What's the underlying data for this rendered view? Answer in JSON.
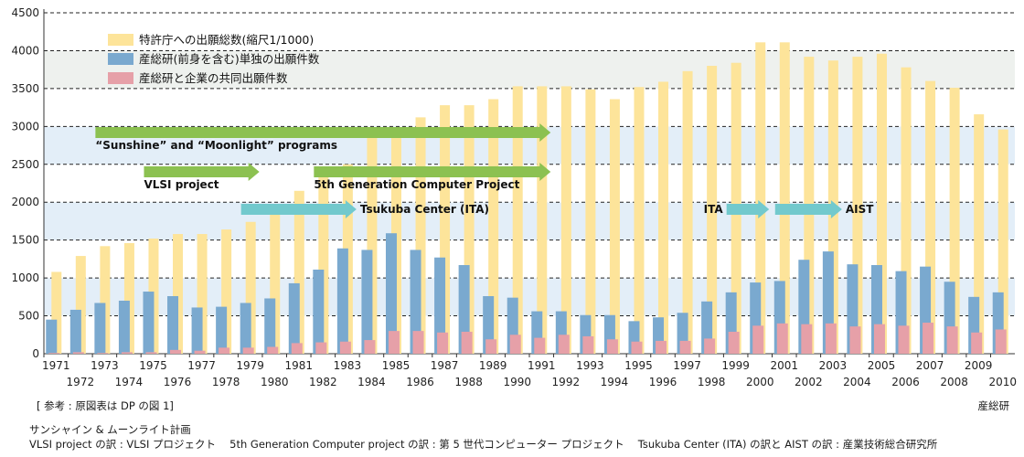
{
  "chart_data": {
    "type": "bar",
    "categories": [
      "1971",
      "1972",
      "1973",
      "1974",
      "1975",
      "1976",
      "1977",
      "1978",
      "1979",
      "1980",
      "1981",
      "1982",
      "1983",
      "1984",
      "1985",
      "1986",
      "1987",
      "1988",
      "1989",
      "1990",
      "1991",
      "1992",
      "1993",
      "1994",
      "1995",
      "1996",
      "1997",
      "1998",
      "1999",
      "2000",
      "2001",
      "2002",
      "2003",
      "2004",
      "2005",
      "2006",
      "2007",
      "2008",
      "2009",
      "2010"
    ],
    "ylim": [
      0,
      4500
    ],
    "yticks": [
      0,
      500,
      1000,
      1500,
      2000,
      2500,
      3000,
      3500,
      4000,
      4500
    ],
    "series": [
      {
        "name": "特許庁への出願総数(縮尺1/1000)",
        "color": "#fde49a",
        "values": [
          1080,
          1290,
          1420,
          1460,
          1520,
          1580,
          1580,
          1640,
          1740,
          1870,
          2150,
          2330,
          2500,
          2870,
          2850,
          3120,
          3280,
          3280,
          3360,
          3530,
          3530,
          3530,
          3490,
          3360,
          3520,
          3590,
          3730,
          3800,
          3840,
          4110,
          4110,
          3920,
          3870,
          3920,
          3960,
          3780,
          3600,
          3510,
          3160,
          2960
        ]
      },
      {
        "name": "産総研(前身を含む)単独の出願件数",
        "color": "#7aa9cf",
        "values": [
          450,
          580,
          670,
          700,
          820,
          760,
          610,
          620,
          670,
          730,
          930,
          1110,
          1390,
          1370,
          1590,
          1370,
          1270,
          1170,
          760,
          740,
          560,
          560,
          510,
          510,
          430,
          480,
          540,
          690,
          810,
          940,
          960,
          1240,
          1350,
          1180,
          1170,
          1090,
          1150,
          950,
          750,
          810
        ]
      },
      {
        "name": "産総研と企業の共同出願件数",
        "color": "#e6a0a8",
        "values": [
          10,
          20,
          10,
          20,
          20,
          50,
          40,
          80,
          80,
          90,
          140,
          150,
          160,
          180,
          300,
          300,
          280,
          290,
          190,
          250,
          210,
          250,
          230,
          190,
          160,
          170,
          170,
          200,
          290,
          370,
          400,
          390,
          400,
          360,
          390,
          370,
          410,
          360,
          280,
          320
        ]
      }
    ],
    "legend_position": "top-left",
    "annotations": [
      {
        "text": "“Sunshine” and “Moonlight” programs",
        "start": "1973",
        "end": "1991"
      },
      {
        "text": "VLSI project",
        "start": "1975",
        "end": "1979"
      },
      {
        "text": "5th Generation Computer Project",
        "start": "1982",
        "end": "1991"
      },
      {
        "text": "Tsukuba Center (ITA)",
        "start": "1979",
        "end": "1983"
      },
      {
        "text": "ITA",
        "start": "1999",
        "end": "2000"
      },
      {
        "text": "AIST",
        "start": "2001",
        "end": "2003"
      }
    ]
  },
  "notes": {
    "reference": "[ 参考 : 原図表は DP の図 1]",
    "source": "産総研",
    "line1": "サンシャイン & ムーンライト計画",
    "line2": "VLSI project の訳 : VLSI プロジェクト　 5th Generation Computer project の訳 : 第 5 世代コンピューター プロジェクト　 Tsukuba Center (ITA) の訳と AIST の訳 : 産業技術総合研究所"
  },
  "colors": {
    "band_gray": "#eef1ee",
    "band_blue": "#e3eef8",
    "arrow_green": "#8cc151",
    "arrow_cyan": "#72c9cd"
  }
}
